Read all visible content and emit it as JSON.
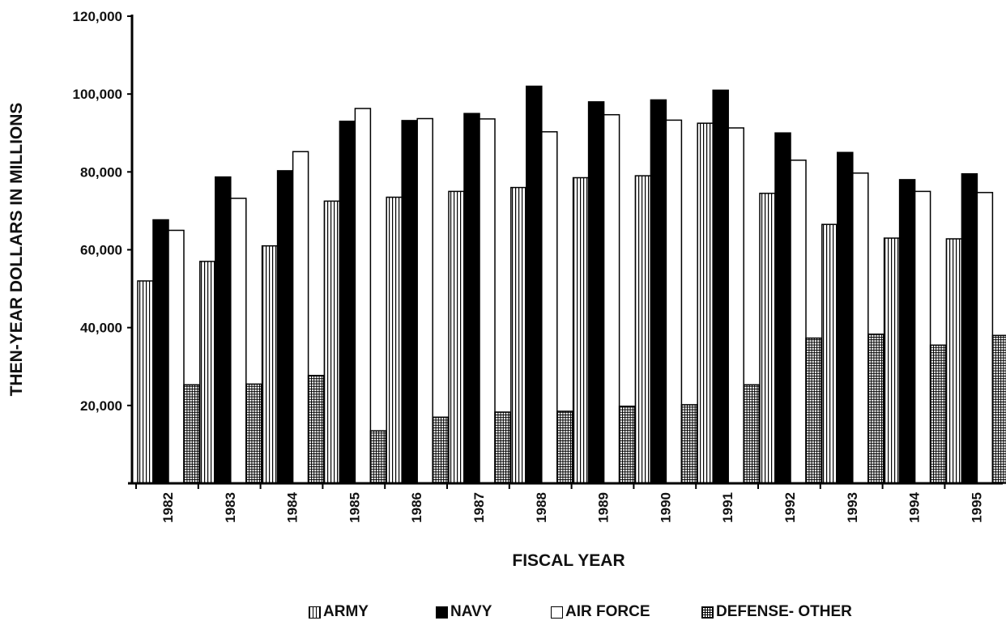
{
  "chart_data": {
    "type": "bar",
    "xlabel": "FISCAL YEAR",
    "ylabel": "THEN-YEAR DOLLARS IN MILLIONS",
    "ylim": [
      0,
      120000
    ],
    "yticks": [
      "20,000",
      "40,000",
      "60,000",
      "80,000",
      "100,000",
      "120,000"
    ],
    "legend_position": "bottom",
    "categories": [
      "1982",
      "1983",
      "1984",
      "1985",
      "1986",
      "1987",
      "1988",
      "1989",
      "1990",
      "1991",
      "1992",
      "1993",
      "1994",
      "1995"
    ],
    "series": [
      {
        "name": "ARMY",
        "pattern": "vertical-lines",
        "values": [
          52000,
          57000,
          61000,
          72500,
          73500,
          75000,
          76000,
          78500,
          79000,
          92500,
          74500,
          66500,
          63000,
          62800
        ]
      },
      {
        "name": "NAVY",
        "pattern": "solid-black",
        "values": [
          67700,
          78700,
          80300,
          93000,
          93200,
          95000,
          102000,
          98000,
          98500,
          101000,
          90000,
          85000,
          78000,
          79500
        ]
      },
      {
        "name": "AIR FORCE",
        "pattern": "white",
        "values": [
          65000,
          73200,
          85200,
          96300,
          93700,
          93600,
          90300,
          94700,
          93300,
          91300,
          83000,
          79700,
          75000,
          74700
        ]
      },
      {
        "name": "DEFENSE- OTHER",
        "pattern": "grid",
        "values": [
          25300,
          25500,
          27700,
          13500,
          17000,
          18300,
          18500,
          19800,
          20200,
          25300,
          37300,
          38300,
          35500,
          38000
        ]
      }
    ]
  }
}
